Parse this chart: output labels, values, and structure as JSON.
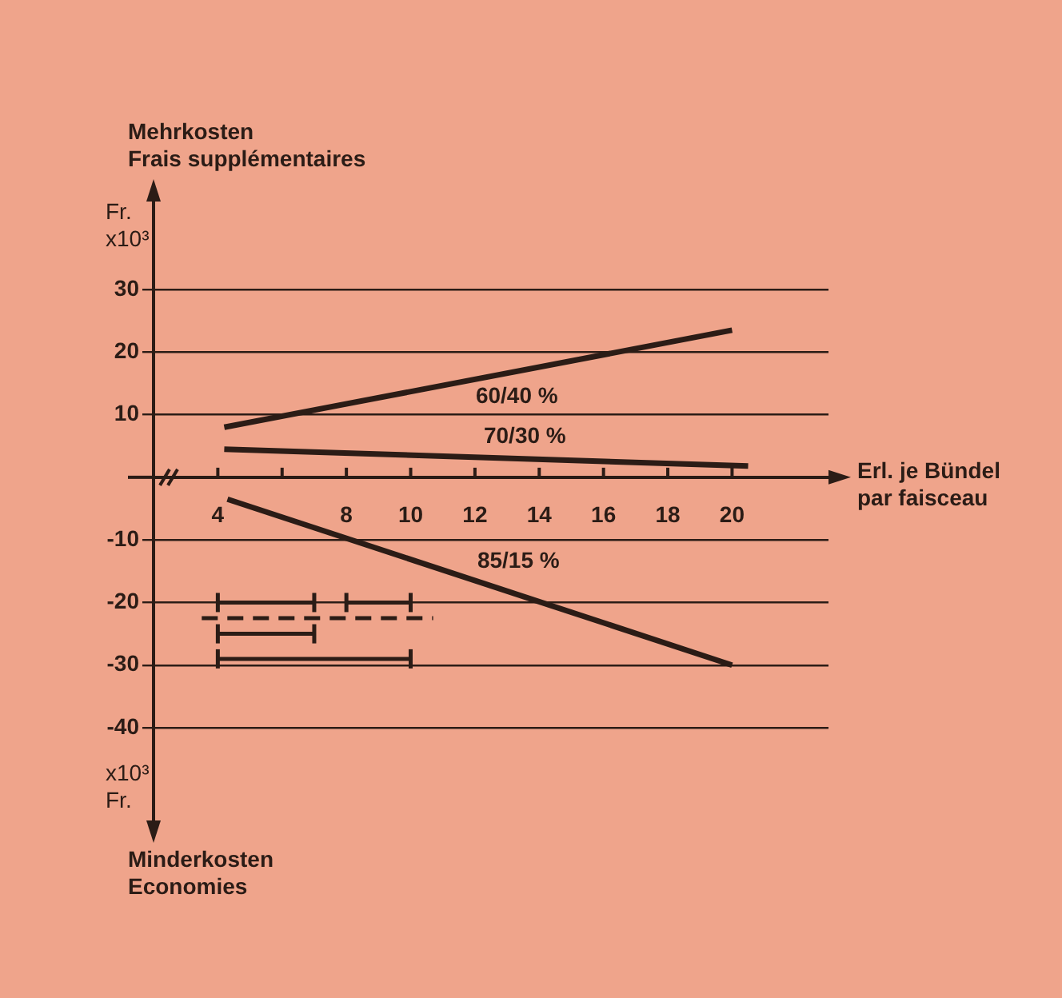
{
  "chart_data": {
    "type": "line",
    "xlabel": "Erl. je Bündel\npar faisceau",
    "ylabel": "Mehrkosten\nFrais supplémentaires",
    "annotations": [
      "Fr.\nx10³",
      "x10³\nFr.",
      "Minderkosten\nEconomies"
    ],
    "xlim": [
      2,
      23
    ],
    "xticks": [
      4,
      {
        "value": 6,
        "label": null
      },
      8,
      10,
      12,
      14,
      16,
      18,
      20
    ],
    "ylim": [
      -40,
      30
    ],
    "yticks": [
      30,
      20,
      10,
      -10,
      -20,
      -30,
      -40
    ],
    "grid": "y",
    "marker": "none",
    "line_style": "solid",
    "series": [
      {
        "name": "60/40 %",
        "color": "#2b1c16",
        "x": [
          4.2,
          20
        ],
        "values": [
          8,
          23.5
        ]
      },
      {
        "name": "70/30 %",
        "color": "#2b1c16",
        "x": [
          4.2,
          20.5
        ],
        "values": [
          4.5,
          1.8
        ]
      },
      {
        "name": "85/15 %",
        "color": "#2b1c16",
        "x": [
          4.3,
          20
        ],
        "values": [
          -3.5,
          -30
        ]
      },
      {
        "color": "#2b1c16",
        "x": [
          4,
          7
        ],
        "values": [
          -20,
          -20
        ]
      },
      {
        "color": "#2b1c16",
        "x": [
          8,
          10
        ],
        "values": [
          -20,
          -20
        ]
      },
      {
        "color": "#2b1c16",
        "x": [
          4,
          7
        ],
        "values": [
          -25,
          -25
        ]
      },
      {
        "color": "#2b1c16",
        "x": [
          4,
          10
        ],
        "values": [
          -29,
          -29
        ]
      },
      {
        "color": "#2b1c16",
        "line_style": "dashed",
        "x": [
          3.5,
          10.7
        ],
        "values": [
          -22.5,
          -22.5
        ]
      }
    ]
  }
}
